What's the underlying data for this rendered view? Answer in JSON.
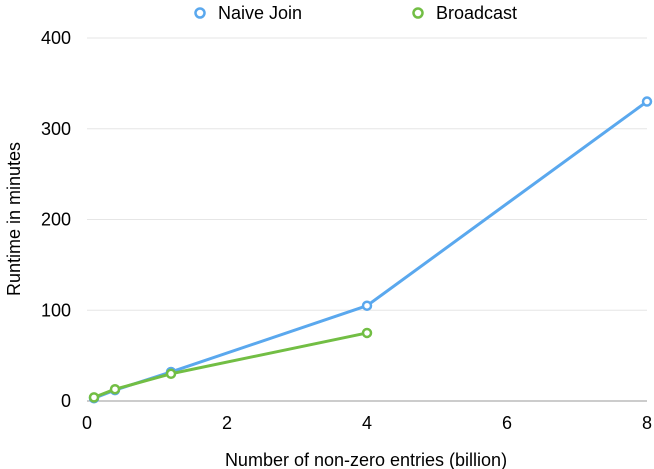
{
  "chart_data": {
    "type": "line",
    "title": "",
    "xlabel": "Number of non-zero entries (billion)",
    "ylabel": "Runtime in minutes",
    "xlim": [
      0,
      8
    ],
    "ylim": [
      0,
      400
    ],
    "x_ticks": [
      0,
      2,
      4,
      6,
      8
    ],
    "y_ticks": [
      0,
      100,
      200,
      300,
      400
    ],
    "grid": "horizontal",
    "legend_position": "top",
    "series": [
      {
        "name": "Naive Join",
        "color": "#5AA8EE",
        "x": [
          0.1,
          0.4,
          1.2,
          4,
          8
        ],
        "y": [
          3,
          12,
          32,
          105,
          330
        ]
      },
      {
        "name": "Broadcast",
        "color": "#72BE44",
        "x": [
          0.1,
          0.4,
          1.2,
          4
        ],
        "y": [
          4,
          13,
          30,
          75
        ]
      }
    ]
  }
}
